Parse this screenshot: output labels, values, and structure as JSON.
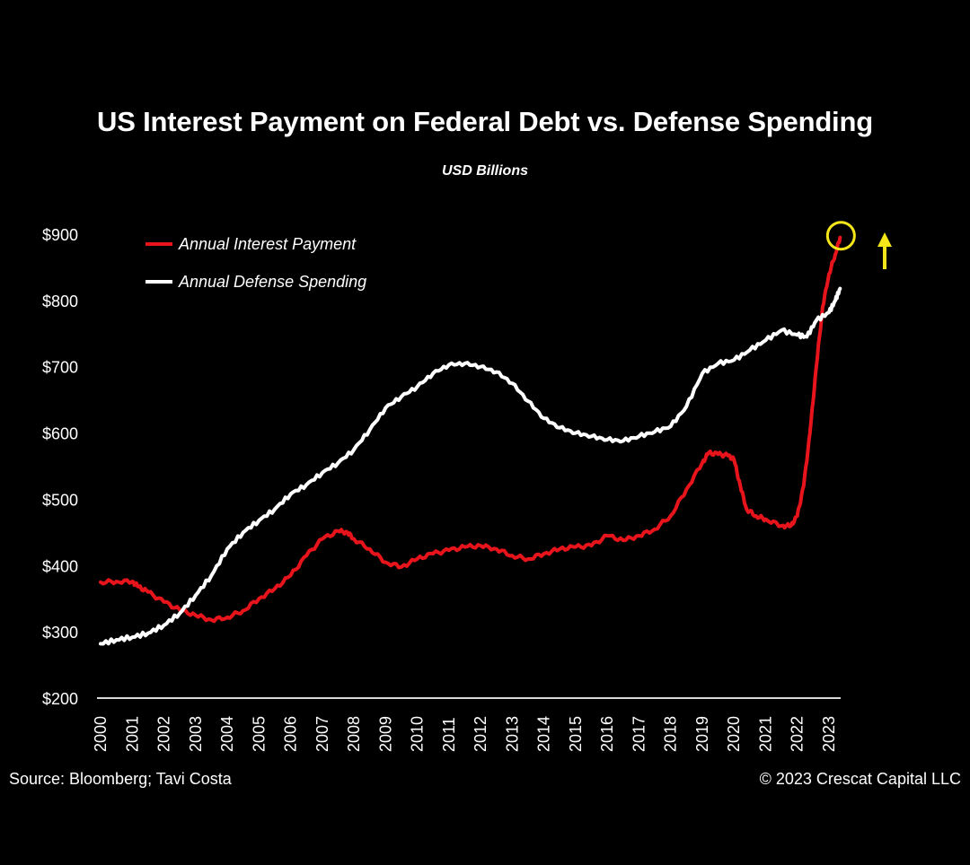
{
  "chart_data": {
    "type": "line",
    "title": "US Interest Payment on Federal Debt vs. Defense Spending",
    "subtitle": "USD Billions",
    "xlabel": "",
    "ylabel": "",
    "xlim": [
      2000,
      2023.6
    ],
    "ylim": [
      200,
      900
    ],
    "y_ticks": [
      200,
      300,
      400,
      500,
      600,
      700,
      800,
      900
    ],
    "y_tick_labels": [
      "$200",
      "$300",
      "$400",
      "$500",
      "$600",
      "$700",
      "$800",
      "$900"
    ],
    "x_ticks": [
      2000,
      2001,
      2002,
      2003,
      2004,
      2005,
      2006,
      2007,
      2008,
      2009,
      2010,
      2011,
      2012,
      2013,
      2014,
      2015,
      2016,
      2017,
      2018,
      2019,
      2020,
      2021,
      2022,
      2023
    ],
    "x_tick_labels": [
      "2000",
      "2001",
      "2002",
      "2003",
      "2004",
      "2005",
      "2006",
      "2007",
      "2008",
      "2009",
      "2010",
      "2011",
      "2012",
      "2013",
      "2014",
      "2015",
      "2016",
      "2017",
      "2018",
      "2019",
      "2020",
      "2021",
      "2022",
      "2023"
    ],
    "grid": false,
    "legend_position": "top-left",
    "series": [
      {
        "name": "Annual Interest Payment",
        "color": "#e8141b",
        "points": [
          [
            2000.0,
            375
          ],
          [
            2000.5,
            376
          ],
          [
            2001.0,
            376
          ],
          [
            2001.2,
            368
          ],
          [
            2001.5,
            360
          ],
          [
            2002.0,
            345
          ],
          [
            2002.5,
            333
          ],
          [
            2003.0,
            325
          ],
          [
            2003.5,
            318
          ],
          [
            2004.0,
            322
          ],
          [
            2004.5,
            332
          ],
          [
            2005.0,
            350
          ],
          [
            2005.5,
            365
          ],
          [
            2006.0,
            385
          ],
          [
            2006.5,
            415
          ],
          [
            2007.0,
            440
          ],
          [
            2007.5,
            452
          ],
          [
            2007.8,
            450
          ],
          [
            2008.0,
            440
          ],
          [
            2008.5,
            425
          ],
          [
            2009.0,
            405
          ],
          [
            2009.5,
            398
          ],
          [
            2010.0,
            410
          ],
          [
            2010.5,
            418
          ],
          [
            2011.0,
            423
          ],
          [
            2011.5,
            428
          ],
          [
            2012.0,
            430
          ],
          [
            2012.5,
            425
          ],
          [
            2013.0,
            415
          ],
          [
            2013.5,
            410
          ],
          [
            2014.0,
            418
          ],
          [
            2014.5,
            425
          ],
          [
            2015.0,
            428
          ],
          [
            2015.5,
            430
          ],
          [
            2016.0,
            445
          ],
          [
            2016.5,
            438
          ],
          [
            2017.0,
            445
          ],
          [
            2017.5,
            455
          ],
          [
            2018.0,
            475
          ],
          [
            2018.5,
            515
          ],
          [
            2019.0,
            555
          ],
          [
            2019.2,
            570
          ],
          [
            2019.5,
            568
          ],
          [
            2019.8,
            566
          ],
          [
            2020.0,
            560
          ],
          [
            2020.2,
            520
          ],
          [
            2020.4,
            485
          ],
          [
            2020.7,
            475
          ],
          [
            2021.0,
            470
          ],
          [
            2021.5,
            460
          ],
          [
            2021.8,
            460
          ],
          [
            2022.0,
            475
          ],
          [
            2022.2,
            520
          ],
          [
            2022.4,
            600
          ],
          [
            2022.6,
            700
          ],
          [
            2022.8,
            790
          ],
          [
            2023.0,
            840
          ],
          [
            2023.2,
            870
          ],
          [
            2023.35,
            895
          ]
        ]
      },
      {
        "name": "Annual Defense Spending",
        "color": "#ffffff",
        "points": [
          [
            2000.0,
            282
          ],
          [
            2000.5,
            288
          ],
          [
            2001.0,
            292
          ],
          [
            2001.5,
            298
          ],
          [
            2002.0,
            310
          ],
          [
            2002.5,
            328
          ],
          [
            2003.0,
            355
          ],
          [
            2003.5,
            385
          ],
          [
            2004.0,
            425
          ],
          [
            2004.5,
            450
          ],
          [
            2005.0,
            468
          ],
          [
            2005.5,
            485
          ],
          [
            2006.0,
            508
          ],
          [
            2006.5,
            522
          ],
          [
            2007.0,
            540
          ],
          [
            2007.5,
            555
          ],
          [
            2008.0,
            575
          ],
          [
            2008.5,
            605
          ],
          [
            2009.0,
            638
          ],
          [
            2009.5,
            655
          ],
          [
            2010.0,
            670
          ],
          [
            2010.5,
            690
          ],
          [
            2011.0,
            703
          ],
          [
            2011.5,
            705
          ],
          [
            2012.0,
            700
          ],
          [
            2012.5,
            692
          ],
          [
            2013.0,
            675
          ],
          [
            2013.5,
            648
          ],
          [
            2014.0,
            622
          ],
          [
            2014.5,
            608
          ],
          [
            2015.0,
            600
          ],
          [
            2015.5,
            595
          ],
          [
            2016.0,
            590
          ],
          [
            2016.5,
            588
          ],
          [
            2017.0,
            595
          ],
          [
            2017.5,
            602
          ],
          [
            2018.0,
            610
          ],
          [
            2018.5,
            640
          ],
          [
            2019.0,
            690
          ],
          [
            2019.5,
            705
          ],
          [
            2020.0,
            710
          ],
          [
            2020.5,
            725
          ],
          [
            2021.0,
            740
          ],
          [
            2021.5,
            755
          ],
          [
            2022.0,
            748
          ],
          [
            2022.3,
            745
          ],
          [
            2022.6,
            770
          ],
          [
            2023.0,
            782
          ],
          [
            2023.2,
            800
          ],
          [
            2023.35,
            818
          ]
        ]
      }
    ],
    "annotations": [
      {
        "type": "circle",
        "x": 2023.35,
        "y": 895,
        "color": "#f5e61a"
      },
      {
        "type": "arrow-up",
        "x": 2025.0,
        "y": 875,
        "color": "#f5e61a"
      }
    ]
  },
  "footer": {
    "source": "Source: Bloomberg; Tavi Costa",
    "copyright": "© 2023 Crescat Capital LLC"
  }
}
